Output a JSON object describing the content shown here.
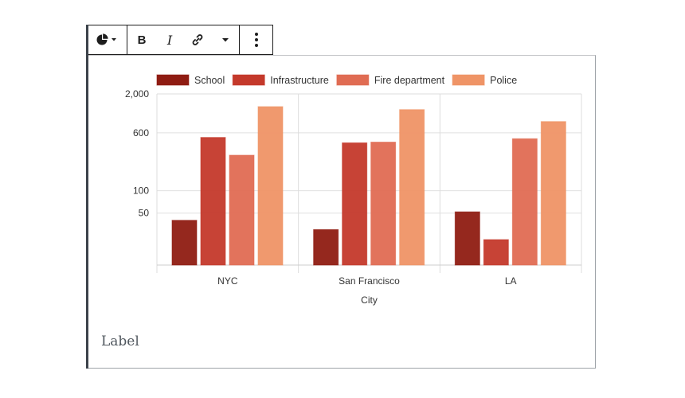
{
  "toolbar": {
    "chart_type_icon": "pie-chart-icon",
    "bold_label": "B",
    "italic_label": "I",
    "link_icon": "link-icon",
    "more_icon": "vertical-ellipsis-icon"
  },
  "caption": {
    "label": "Label"
  },
  "chart_data": {
    "type": "bar",
    "title": "",
    "xlabel": "City",
    "ylabel": "",
    "y_scale": "log",
    "ylim": [
      10,
      2000
    ],
    "y_ticks": [
      50,
      100,
      600,
      2000
    ],
    "y_tick_labels": [
      "50",
      "100",
      "600",
      "2,000"
    ],
    "grid": true,
    "legend_position": "top",
    "categories": [
      "NYC",
      "San Francisco",
      "LA"
    ],
    "series": [
      {
        "name": "School",
        "values": [
          40,
          30,
          52
        ],
        "color": "#8f1c12"
      },
      {
        "name": "Infrastructure",
        "values": [
          520,
          440,
          22
        ],
        "color": "#c4392b"
      },
      {
        "name": "Fire department",
        "values": [
          300,
          450,
          500
        ],
        "color": "#e06c53"
      },
      {
        "name": "Police",
        "values": [
          1350,
          1230,
          850
        ],
        "color": "#ef9466"
      }
    ]
  }
}
